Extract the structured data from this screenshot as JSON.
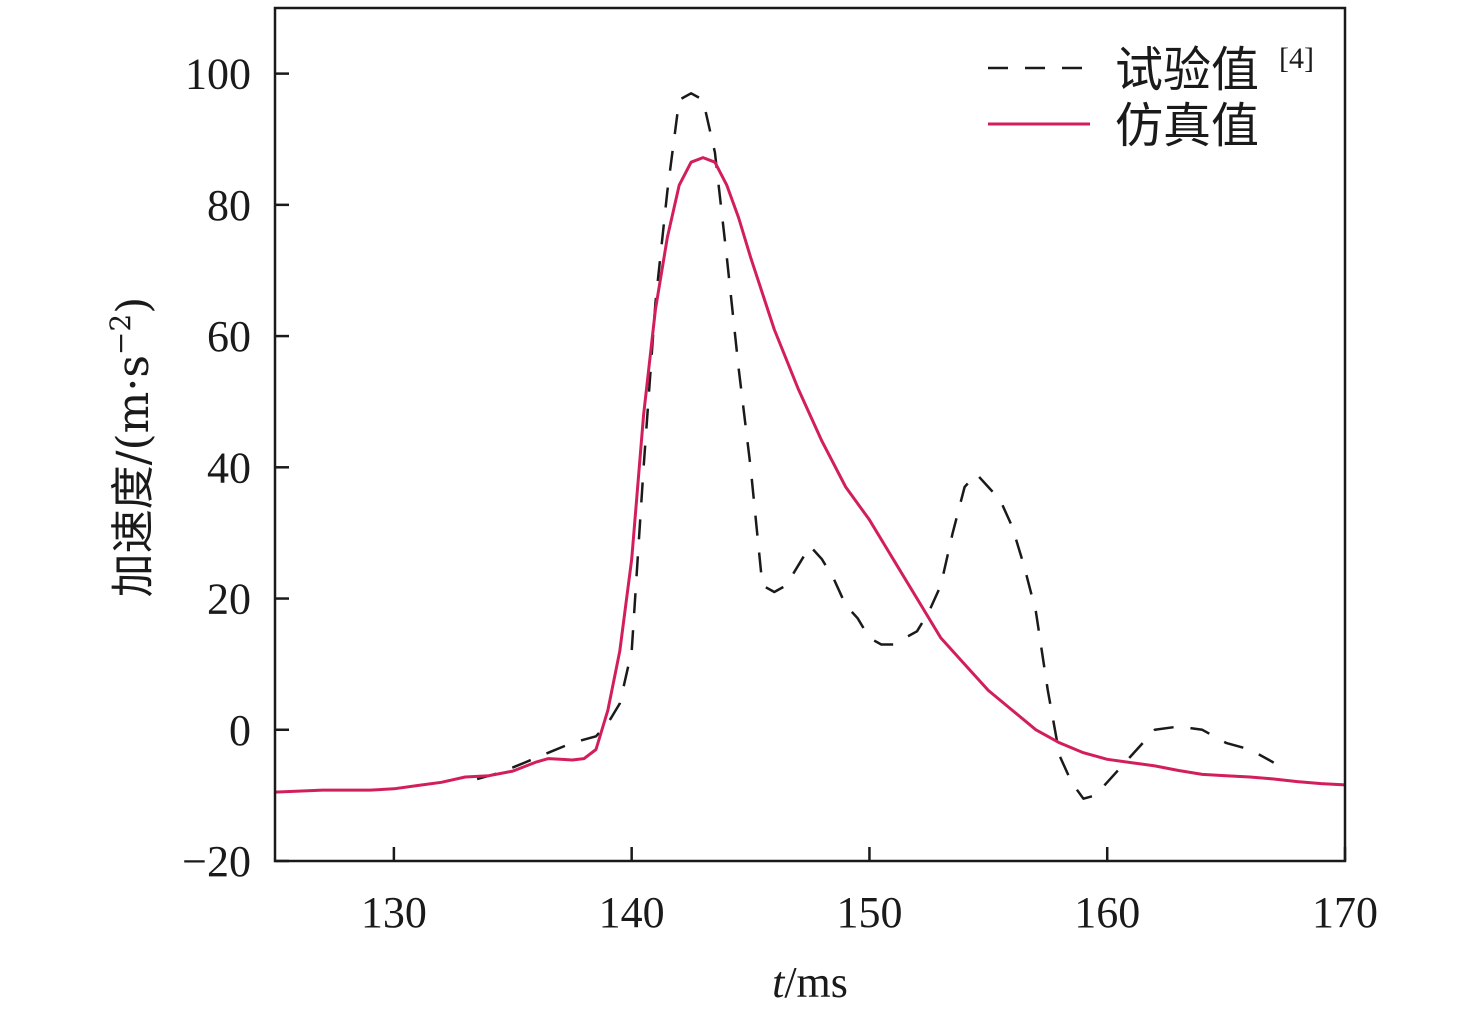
{
  "colors": {
    "axis": "#1a1a1a",
    "experiment": "#1a1a1a",
    "simulation": "#d21f5c"
  },
  "chart_data": {
    "type": "line",
    "xlabel_italic": "t",
    "xlabel_unit": "/ms",
    "ylabel_main": "加速度/(m·s",
    "ylabel_exp": "−2",
    "ylabel_close": ")",
    "xlim": [
      125,
      170
    ],
    "ylim": [
      -20,
      110
    ],
    "xticks": [
      130,
      140,
      150,
      160,
      170
    ],
    "xtick_labels": [
      "130",
      "140",
      "150",
      "160",
      "170"
    ],
    "yticks": [
      -20,
      0,
      20,
      40,
      60,
      80,
      100
    ],
    "ytick_labels": [
      "−20",
      "0",
      "20",
      "40",
      "60",
      "80",
      "100"
    ],
    "grid": false,
    "legend_position": "top-right",
    "series": [
      {
        "name": "试验值",
        "name_ref": "[4]",
        "style": "dashed",
        "color": "#1a1a1a",
        "x": [
          133.5,
          134.5,
          135.5,
          136.5,
          137.5,
          138.5,
          139.0,
          139.5,
          140.0,
          140.5,
          141.0,
          141.5,
          142.0,
          142.5,
          143.0,
          143.5,
          144.0,
          144.5,
          145.0,
          145.5,
          146.0,
          146.5,
          147.0,
          147.5,
          148.0,
          148.5,
          149.0,
          149.5,
          150.0,
          150.5,
          151.0,
          152.0,
          152.5,
          153.0,
          153.5,
          154.0,
          154.5,
          155.0,
          155.5,
          156.0,
          156.5,
          157.0,
          157.5,
          158.0,
          158.5,
          159.0,
          159.5,
          160.0,
          161.0,
          162.0,
          163.0,
          164.0,
          165.0,
          166.0,
          167.0
        ],
        "y": [
          -7.5,
          -6.5,
          -5,
          -3.5,
          -2,
          -1,
          1,
          4,
          12,
          40,
          65,
          82,
          96,
          97,
          96,
          88,
          72,
          55,
          40,
          22,
          21,
          22,
          25,
          28,
          26,
          23,
          19,
          17,
          14,
          13,
          13,
          15,
          18,
          22,
          30,
          37,
          39,
          37,
          35,
          31,
          25,
          18,
          6,
          -4,
          -8,
          -10.5,
          -10,
          -8,
          -4,
          0,
          0.5,
          0,
          -2,
          -3,
          -5
        ]
      },
      {
        "name": "仿真值",
        "style": "solid",
        "color": "#d21f5c",
        "x": [
          125,
          127,
          129,
          130,
          131,
          132,
          133,
          134,
          135,
          135.5,
          136,
          136.5,
          137,
          137.5,
          138,
          138.5,
          139,
          139.5,
          140,
          140.5,
          141,
          141.5,
          142,
          142.5,
          143,
          143.5,
          144,
          144.5,
          145,
          146,
          147,
          148,
          149,
          150,
          151,
          152,
          153,
          154,
          155,
          156,
          157,
          158,
          159,
          160,
          161,
          162,
          163,
          164,
          165,
          166,
          167,
          168,
          169,
          170
        ],
        "y": [
          -9.5,
          -9.2,
          -9.2,
          -9,
          -8.5,
          -8,
          -7.2,
          -7,
          -6.3,
          -5.6,
          -4.9,
          -4.4,
          -4.5,
          -4.6,
          -4.4,
          -3,
          3,
          12,
          26,
          48,
          64,
          75,
          83,
          86.5,
          87.2,
          86.5,
          83,
          78,
          72,
          61,
          52,
          44,
          37,
          32,
          26,
          20,
          14,
          10,
          6,
          3,
          0,
          -2,
          -3.5,
          -4.5,
          -5,
          -5.5,
          -6.2,
          -6.8,
          -7,
          -7.2,
          -7.5,
          -7.9,
          -8.2,
          -8.4
        ]
      }
    ]
  }
}
